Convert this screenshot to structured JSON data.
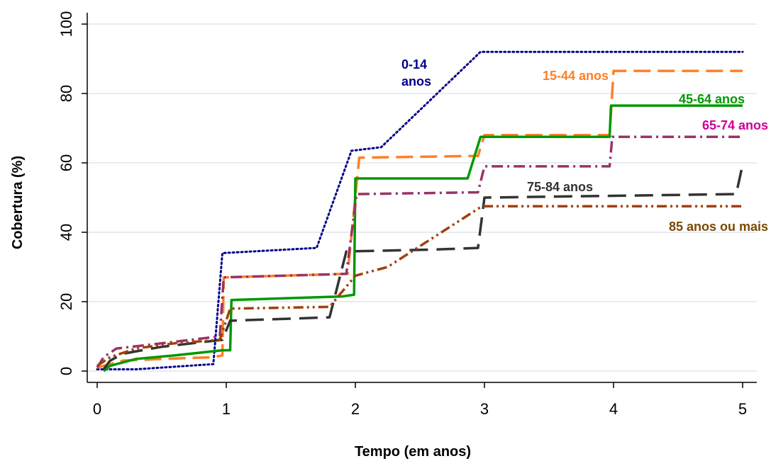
{
  "chart_data": {
    "type": "line",
    "title": "",
    "xlabel": "Tempo (em anos)",
    "ylabel": "Cobertura (%)",
    "xlim": [
      0,
      5
    ],
    "ylim": [
      0,
      100
    ],
    "xticks": [
      "0",
      "1",
      "2",
      "3",
      "4",
      "5"
    ],
    "yticks": [
      "0",
      "20",
      "40",
      "60",
      "80",
      "100"
    ],
    "grid": "horizontal",
    "legend": "inline labels",
    "series": [
      {
        "name": "0-14 anos",
        "label_lines": [
          "0-14",
          "anos"
        ],
        "color": "#00008B",
        "style": "dotted",
        "points": [
          [
            0,
            0.5
          ],
          [
            0.3,
            0.5
          ],
          [
            0.9,
            2
          ],
          [
            0.97,
            34
          ],
          [
            1.7,
            35.5
          ],
          [
            1.97,
            63.5
          ],
          [
            2.2,
            64.5
          ],
          [
            2.97,
            92
          ],
          [
            5,
            92
          ]
        ]
      },
      {
        "name": "15-44 anos",
        "label_lines": [
          "15-44 anos"
        ],
        "color": "#FF7F27",
        "style": "dashed",
        "points": [
          [
            0,
            1
          ],
          [
            0.2,
            3
          ],
          [
            0.5,
            3.5
          ],
          [
            0.9,
            4
          ],
          [
            0.97,
            4.5
          ],
          [
            0.98,
            27
          ],
          [
            1.9,
            28
          ],
          [
            1.94,
            28
          ],
          [
            2.03,
            61.5
          ],
          [
            2.95,
            62
          ],
          [
            3.0,
            68
          ],
          [
            3.97,
            68
          ],
          [
            4.0,
            86.5
          ],
          [
            5,
            86.5
          ]
        ]
      },
      {
        "name": "45-64 anos",
        "label_lines": [
          "45-64 anos"
        ],
        "color": "#009900",
        "style": "solid",
        "points": [
          [
            0.05,
            0
          ],
          [
            0.1,
            1.5
          ],
          [
            0.3,
            3.5
          ],
          [
            0.6,
            4.5
          ],
          [
            0.97,
            6
          ],
          [
            1.03,
            6
          ],
          [
            1.04,
            20.5
          ],
          [
            1.9,
            21.5
          ],
          [
            1.99,
            22
          ],
          [
            2.0,
            55.5
          ],
          [
            2.87,
            55.5
          ],
          [
            2.97,
            67.5
          ],
          [
            3.97,
            67.5
          ],
          [
            3.98,
            76.5
          ],
          [
            5,
            76.5
          ]
        ]
      },
      {
        "name": "65-74 anos",
        "label_lines": [
          "65-74 anos"
        ],
        "color": "#993366",
        "label_color": "#CC0099",
        "style": "dashdot",
        "points": [
          [
            0,
            1
          ],
          [
            0.05,
            4
          ],
          [
            0.15,
            6.5
          ],
          [
            0.5,
            8
          ],
          [
            0.95,
            10
          ],
          [
            0.98,
            27
          ],
          [
            1.93,
            28
          ],
          [
            2.01,
            51
          ],
          [
            2.95,
            51.5
          ],
          [
            3.0,
            59
          ],
          [
            3.97,
            59
          ],
          [
            3.99,
            67.5
          ],
          [
            5,
            67.5
          ]
        ]
      },
      {
        "name": "75-84 anos",
        "label_lines": [
          "75-84 anos"
        ],
        "color": "#333333",
        "style": "longdash",
        "points": [
          [
            0.05,
            0.5
          ],
          [
            0.1,
            3
          ],
          [
            0.2,
            5
          ],
          [
            0.5,
            7
          ],
          [
            0.97,
            9
          ],
          [
            1.03,
            14.5
          ],
          [
            1.8,
            15.5
          ],
          [
            1.93,
            34.5
          ],
          [
            2.6,
            35
          ],
          [
            2.95,
            35.5
          ],
          [
            3.0,
            50
          ],
          [
            4.95,
            51
          ],
          [
            5,
            59.5
          ]
        ]
      },
      {
        "name": "85 anos ou mais",
        "label_lines": [
          "85 anos ou mais"
        ],
        "color": "#A0400A",
        "label_color": "#7A4A00",
        "style": "dashdotdot",
        "points": [
          [
            0,
            1.5
          ],
          [
            0.1,
            4
          ],
          [
            0.3,
            6.5
          ],
          [
            0.6,
            8
          ],
          [
            0.95,
            9
          ],
          [
            1.03,
            18
          ],
          [
            1.8,
            18.5
          ],
          [
            2.0,
            27.5
          ],
          [
            2.25,
            30
          ],
          [
            2.98,
            47.5
          ],
          [
            5,
            47.5
          ]
        ]
      }
    ]
  }
}
